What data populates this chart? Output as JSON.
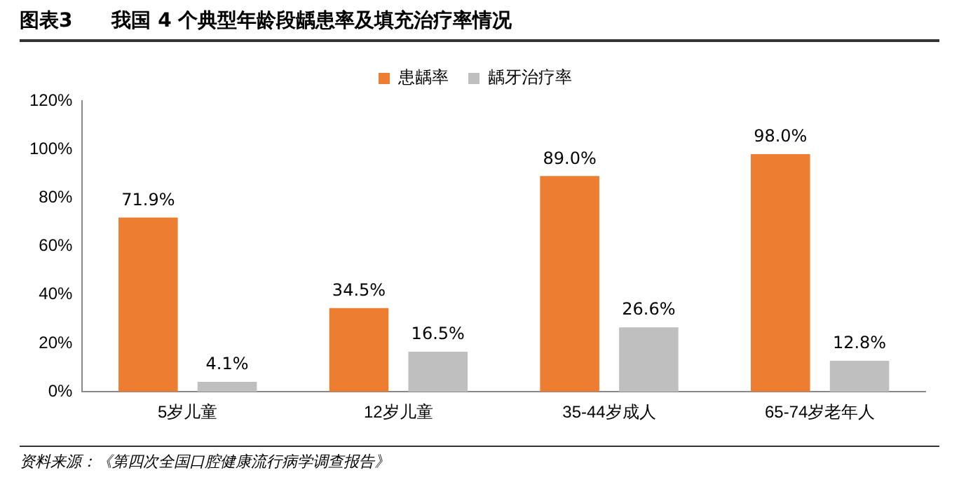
{
  "chart_data": {
    "type": "bar",
    "title": "图表3　　我国 4 个典型年龄段龋患率及填充治疗率情况",
    "categories": [
      "5岁儿童",
      "12岁儿童",
      "35-44岁成人",
      "65-74岁老年人"
    ],
    "series": [
      {
        "name": "患龋率",
        "color": "#ed7d31",
        "values": [
          71.9,
          34.5,
          89.0,
          98.0
        ],
        "value_labels": [
          "71.9%",
          "34.5%",
          "89.0%",
          "98.0%"
        ]
      },
      {
        "name": "龋牙治疗率",
        "color": "#bfbfbf",
        "values": [
          4.1,
          16.5,
          26.6,
          12.8
        ],
        "value_labels": [
          "4.1%",
          "16.5%",
          "26.6%",
          "12.8%"
        ]
      }
    ],
    "ylim": [
      0,
      120
    ],
    "yticks": [
      {
        "value": 0,
        "label": "0%"
      },
      {
        "value": 20,
        "label": "20%"
      },
      {
        "value": 40,
        "label": "40%"
      },
      {
        "value": 60,
        "label": "60%"
      },
      {
        "value": 80,
        "label": "80%"
      },
      {
        "value": 100,
        "label": "100%"
      },
      {
        "value": 120,
        "label": "120%"
      }
    ],
    "grid": false,
    "legend": "top",
    "annotations": [
      "资料来源：《第四次全国口腔健康流行病学调查报告》"
    ]
  }
}
